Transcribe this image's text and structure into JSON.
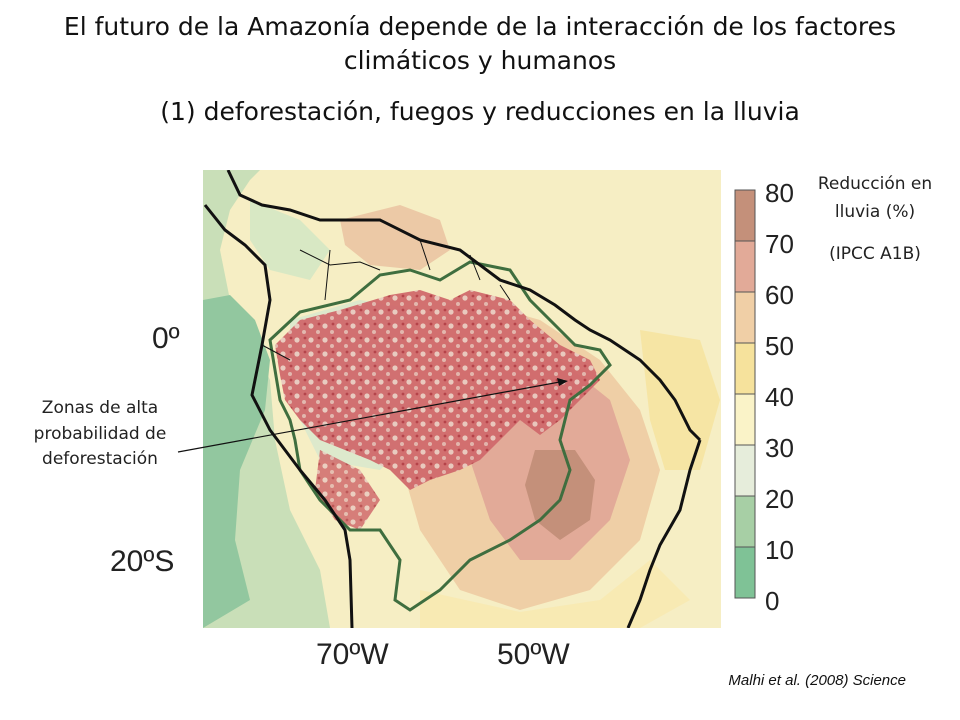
{
  "title": "El futuro de la Amazonía depende de la interacción de los factores climáticos y humanos",
  "subtitle": "(1) deforestación, fuegos y reducciones en la lluvia",
  "map": {
    "lat_labels": [
      "0º",
      "20ºS"
    ],
    "lon_labels": [
      "70ºW",
      "50ºW"
    ],
    "colors": {
      "ocean": "#f5f0d6",
      "country_border": "#111111",
      "basin_outline": "#3f6e3f",
      "deforestation": "#c24a4f"
    }
  },
  "legend": {
    "title": "Reducción en lluvia (%)",
    "subtitle": "(IPCC A1B)",
    "ticks": [
      "80",
      "70",
      "60",
      "50",
      "40",
      "30",
      "20",
      "10",
      "0"
    ],
    "bins": [
      {
        "range": "70-80",
        "color": "#c4907a"
      },
      {
        "range": "60-70",
        "color": "#e2aa98"
      },
      {
        "range": "50-60",
        "color": "#f0cfa6"
      },
      {
        "range": "40-50",
        "color": "#f6e29c"
      },
      {
        "range": "30-40",
        "color": "#faf3c8"
      },
      {
        "range": "20-30",
        "color": "#e6eddb"
      },
      {
        "range": "10-20",
        "color": "#a7cfa5"
      },
      {
        "range": "0-10",
        "color": "#7fc296"
      }
    ]
  },
  "annotation": "Zonas de alta probabilidad de deforestación",
  "source": "Malhi et al. (2008) Science"
}
